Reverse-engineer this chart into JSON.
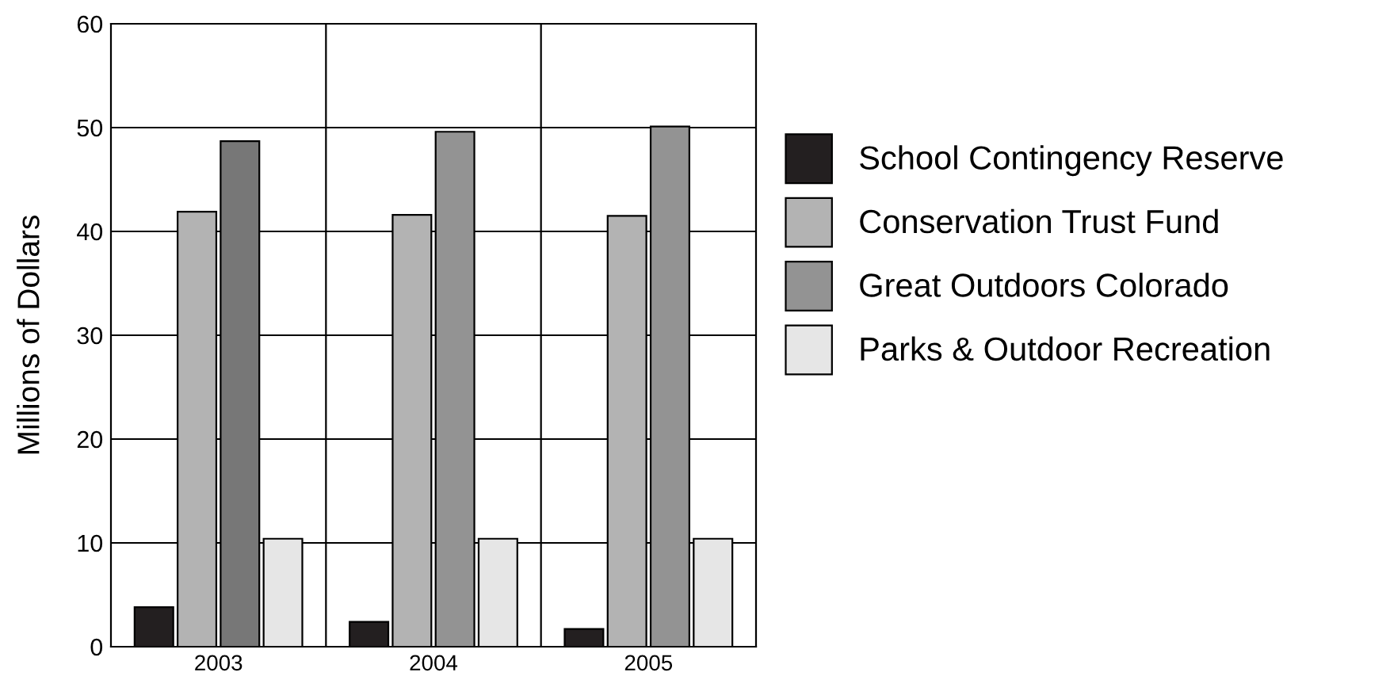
{
  "chart_data": {
    "type": "bar",
    "ylabel": "Millions of Dollars",
    "categories": [
      "2003",
      "2004",
      "2005"
    ],
    "series": [
      {
        "name": "School Contingency Reserve",
        "color": "#231f20",
        "values": [
          3.8,
          2.4,
          1.7
        ]
      },
      {
        "name": "Conservation Trust Fund",
        "color": "#b3b3b3",
        "values": [
          41.9,
          41.6,
          41.5
        ]
      },
      {
        "name": "Great Outdoors Colorado",
        "color": "#939393",
        "colors": [
          "#777777",
          "#939393",
          "#939393"
        ],
        "values": [
          48.7,
          49.6,
          50.1
        ]
      },
      {
        "name": "Parks & Outdoor Recreation",
        "color": "#e6e6e6",
        "values": [
          10.4,
          10.4,
          10.4
        ]
      }
    ],
    "ylim": [
      0,
      60
    ],
    "yticks": [
      0,
      10,
      20,
      30,
      40,
      50,
      60
    ],
    "grid": true,
    "legend": "right"
  }
}
